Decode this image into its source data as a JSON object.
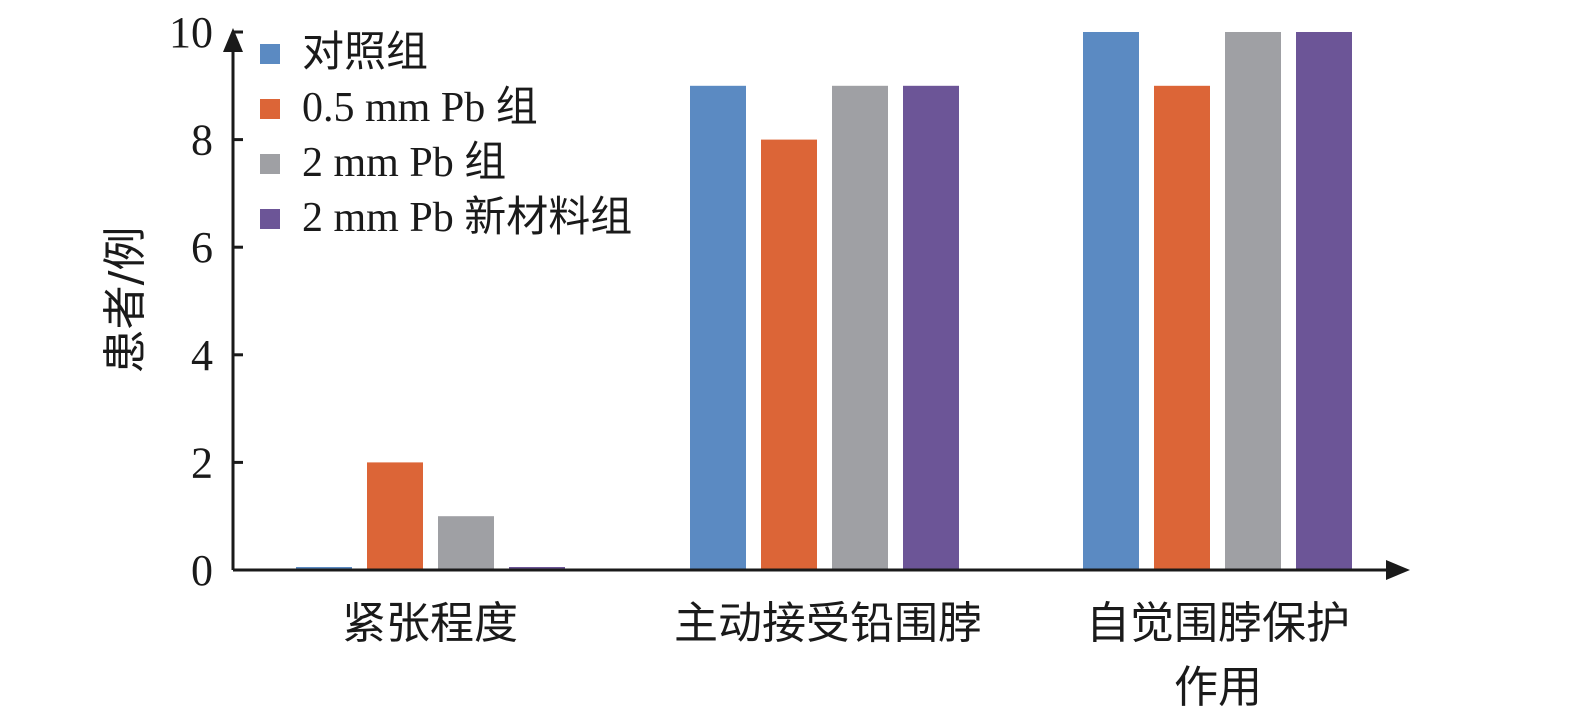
{
  "chart_data": {
    "type": "bar",
    "categories": [
      "紧张程度",
      "主动接受铅围脖",
      "自觉围脖保护作用"
    ],
    "category_lines": [
      [
        "紧张程度"
      ],
      [
        "主动接受铅围脖"
      ],
      [
        "自觉围脖保护",
        "作用"
      ]
    ],
    "series": [
      {
        "name": "对照组",
        "values": [
          0,
          9,
          10
        ],
        "color": "#5b8ac2"
      },
      {
        "name": "0.5 mm Pb 组",
        "values": [
          2,
          8,
          9
        ],
        "color": "#dc6537"
      },
      {
        "name": "2 mm Pb 组",
        "values": [
          1,
          9,
          10
        ],
        "color": "#9fa0a4"
      },
      {
        "name": "2 mm Pb 新材料组",
        "values": [
          0,
          9,
          10
        ],
        "color": "#6c5597"
      }
    ],
    "ylabel": "患者/例",
    "xlabel": "",
    "ylim": [
      0,
      10
    ],
    "yticks": [
      0,
      2,
      4,
      6,
      8,
      10
    ],
    "legend_position": "top-left",
    "grid": false
  }
}
